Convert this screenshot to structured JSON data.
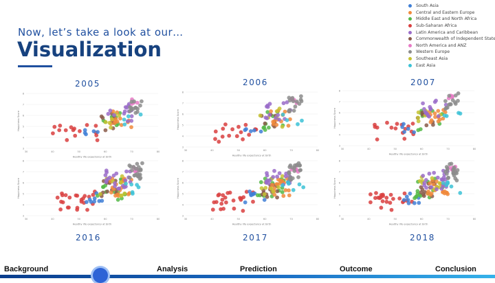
{
  "slide": {
    "subtitle": "Now, let’s take a look at our…",
    "title": "Visualization"
  },
  "legend": [
    {
      "label": "South Asia",
      "color": "#3f7fd6"
    },
    {
      "label": "Central and Eastern Europe",
      "color": "#f08a3c"
    },
    {
      "label": "Middle East and North Africa",
      "color": "#55b848"
    },
    {
      "label": "Sub-Saharan Africa",
      "color": "#d94040"
    },
    {
      "label": "Latin America and Caribbean",
      "color": "#9a6cc9"
    },
    {
      "label": "Commonwealth of Independent States",
      "color": "#8a5a4a"
    },
    {
      "label": "North America and ANZ",
      "color": "#e77ac5"
    },
    {
      "label": "Western Europe",
      "color": "#8c8c8c"
    },
    {
      "label": "Southeast Asia",
      "color": "#c5c232"
    },
    {
      "label": "East Asia",
      "color": "#3cc2d6"
    }
  ],
  "chart_data": [
    {
      "type": "scatter",
      "year_label": "2005",
      "ylabel": "Happiness Score",
      "xlabel": "Healthy life expectancy at birth",
      "xticks": [
        "30",
        "40",
        "50",
        "60",
        "70",
        "80"
      ],
      "yticks": [
        "3",
        "4",
        "5",
        "6",
        "7",
        "8"
      ],
      "xlim": [
        30,
        80
      ],
      "ylim": [
        3,
        8
      ]
    },
    {
      "type": "scatter",
      "year_label": "2006",
      "ylabel": "Happiness Score",
      "xlabel": "Healthy life expectancy at birth",
      "xticks": [
        "30",
        "40",
        "50",
        "60",
        "70",
        "80"
      ],
      "yticks": [
        "3",
        "4",
        "5",
        "6",
        "7",
        "8"
      ],
      "xlim": [
        30,
        80
      ],
      "ylim": [
        3,
        8
      ]
    },
    {
      "type": "scatter",
      "year_label": "2007",
      "ylabel": "Happiness Score",
      "xlabel": "Healthy life expectancy at birth",
      "xticks": [
        "30",
        "40",
        "50",
        "60",
        "70",
        "80"
      ],
      "yticks": [
        "3",
        "4",
        "5",
        "6",
        "7",
        "8"
      ],
      "xlim": [
        30,
        80
      ],
      "ylim": [
        3,
        8
      ]
    },
    {
      "type": "scatter",
      "year_label": "2016",
      "ylabel": "Happiness Score",
      "xlabel": "Healthy life expectancy at birth",
      "xticks": [
        "30",
        "40",
        "50",
        "60",
        "70",
        "80"
      ],
      "yticks": [
        "3",
        "4",
        "5",
        "6",
        "7",
        "8"
      ],
      "xlim": [
        30,
        80
      ],
      "ylim": [
        3,
        8
      ]
    },
    {
      "type": "scatter",
      "year_label": "2017",
      "ylabel": "Happiness Score",
      "xlabel": "Healthy life expectancy at birth",
      "xticks": [
        "30",
        "40",
        "50",
        "60",
        "70",
        "80"
      ],
      "yticks": [
        "3",
        "4",
        "5",
        "6",
        "7",
        "8"
      ],
      "xlim": [
        30,
        80
      ],
      "ylim": [
        3,
        8
      ]
    },
    {
      "type": "scatter",
      "year_label": "2018",
      "ylabel": "Happiness Score",
      "xlabel": "Healthy life expectancy at birth",
      "xticks": [
        "30",
        "40",
        "50",
        "60",
        "70",
        "80"
      ],
      "yticks": [
        "3",
        "4",
        "5",
        "6",
        "7",
        "8"
      ],
      "xlim": [
        30,
        80
      ],
      "ylim": [
        3,
        8
      ]
    }
  ],
  "nav": {
    "background": "Background",
    "analysis": "Analysis",
    "prediction": "Prediction",
    "outcome": "Outcome",
    "conclusion": "Conclusion"
  }
}
